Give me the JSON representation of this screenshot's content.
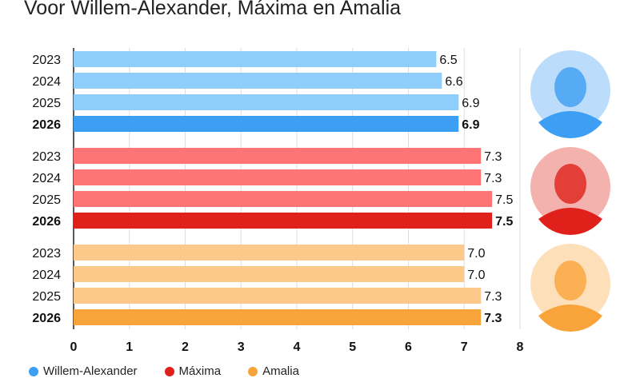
{
  "chart_data": {
    "type": "bar",
    "title": "Voor Willem-Alexander, Máxima en Amalia",
    "orientation": "horizontal",
    "xlim": [
      0,
      8
    ],
    "xticks": [
      "0",
      "1",
      "2",
      "3",
      "4",
      "5",
      "6",
      "7",
      "8"
    ],
    "grid": true,
    "legend_position": "bottom-left",
    "groups": [
      {
        "name": "Willem-Alexander",
        "color_light": "#8fcdfb",
        "color": "#3d9ff3",
        "years": [
          "2023",
          "2024",
          "2025",
          "2026"
        ],
        "values": [
          6.5,
          6.6,
          6.9,
          6.9
        ],
        "labels": [
          "6.5",
          "6.6",
          "6.9",
          "6.9"
        ]
      },
      {
        "name": "Máxima",
        "color_light": "#ff7474",
        "color": "#e0211b",
        "years": [
          "2023",
          "2024",
          "2025",
          "2026"
        ],
        "values": [
          7.3,
          7.3,
          7.5,
          7.5
        ],
        "labels": [
          "7.3",
          "7.3",
          "7.5",
          "7.5"
        ]
      },
      {
        "name": "Amalia",
        "color_light": "#fdc98b",
        "color": "#f9a43a",
        "years": [
          "2023",
          "2024",
          "2025",
          "2026"
        ],
        "values": [
          7.0,
          7.0,
          7.3,
          7.3
        ],
        "labels": [
          "7.0",
          "7.0",
          "7.3",
          "7.3"
        ]
      }
    ]
  }
}
